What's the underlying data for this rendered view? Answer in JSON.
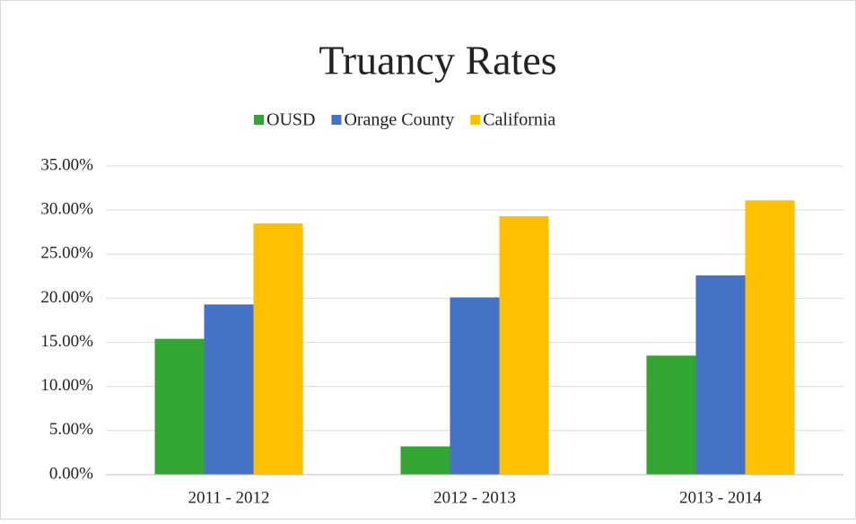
{
  "chart_data": {
    "type": "bar",
    "title": "Truancy Rates",
    "categories": [
      "2011 - 2012",
      "2012 - 2013",
      "2013 - 2014"
    ],
    "series": [
      {
        "name": "OUSD",
        "color": "#33a532",
        "values": [
          15.4,
          3.2,
          13.5
        ]
      },
      {
        "name": "Orange County",
        "color": "#4472c4",
        "values": [
          19.3,
          20.1,
          22.6
        ]
      },
      {
        "name": "California",
        "color": "#ffc000",
        "values": [
          28.5,
          29.3,
          31.1
        ]
      }
    ],
    "ylim": [
      0,
      35
    ],
    "yticks": [
      {
        "value": 0,
        "label": "0.00%"
      },
      {
        "value": 5,
        "label": "5.00%"
      },
      {
        "value": 10,
        "label": "10.00%"
      },
      {
        "value": 15,
        "label": "15.00%"
      },
      {
        "value": 20,
        "label": "20.00%"
      },
      {
        "value": 25,
        "label": "25.00%"
      },
      {
        "value": 30,
        "label": "30.00%"
      },
      {
        "value": 35,
        "label": "35.00%"
      }
    ],
    "grid": true,
    "legend": "top"
  }
}
